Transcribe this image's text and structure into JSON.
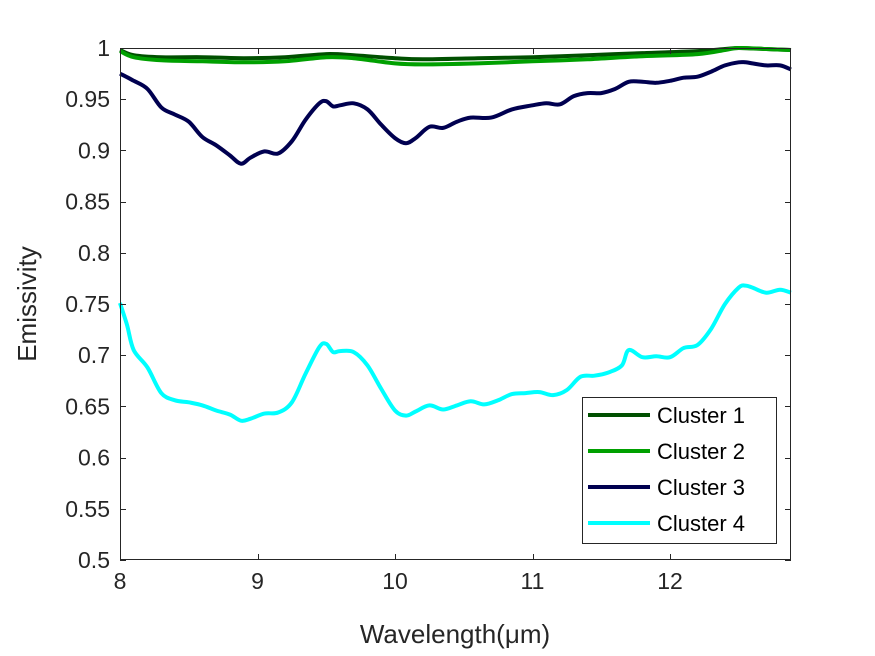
{
  "chart_data": {
    "type": "line",
    "title": "",
    "xlabel": "Wavelength(μm)",
    "ylabel": "Emissivity",
    "xlim": [
      8,
      12.88
    ],
    "ylim": [
      0.5,
      1.0
    ],
    "xticks": [
      8,
      9,
      10,
      11,
      12
    ],
    "xtick_labels": [
      "8",
      "9",
      "10",
      "11",
      "12"
    ],
    "yticks": [
      0.5,
      0.55,
      0.6,
      0.65,
      0.7,
      0.75,
      0.8,
      0.85,
      0.9,
      0.95,
      1.0
    ],
    "ytick_labels": [
      "0.5",
      "0.55",
      "0.6",
      "0.65",
      "0.7",
      "0.75",
      "0.8",
      "0.85",
      "0.9",
      "0.95",
      "1"
    ],
    "legend_position": "bottom-right",
    "grid": false,
    "series": [
      {
        "name": "Cluster 1",
        "color": "#005000",
        "x": [
          8.0,
          8.1,
          8.3,
          8.6,
          8.9,
          9.2,
          9.5,
          9.7,
          10.0,
          10.2,
          10.6,
          11.0,
          11.4,
          11.8,
          12.2,
          12.4,
          12.5,
          12.7,
          12.88
        ],
        "y": [
          0.998,
          0.993,
          0.991,
          0.991,
          0.99,
          0.991,
          0.994,
          0.993,
          0.99,
          0.989,
          0.99,
          0.991,
          0.993,
          0.995,
          0.997,
          0.999,
          1.0,
          0.999,
          0.998
        ]
      },
      {
        "name": "Cluster 2",
        "color": "#00A000",
        "x": [
          8.0,
          8.1,
          8.3,
          8.6,
          8.9,
          9.2,
          9.5,
          9.7,
          10.0,
          10.2,
          10.6,
          11.0,
          11.4,
          11.8,
          12.2,
          12.4,
          12.5,
          12.7,
          12.88
        ],
        "y": [
          0.997,
          0.991,
          0.988,
          0.987,
          0.986,
          0.987,
          0.991,
          0.99,
          0.985,
          0.984,
          0.985,
          0.987,
          0.989,
          0.992,
          0.994,
          0.998,
          1.0,
          0.999,
          0.998
        ]
      },
      {
        "name": "Cluster 3",
        "color": "#000050",
        "x": [
          8.0,
          8.1,
          8.2,
          8.3,
          8.4,
          8.5,
          8.6,
          8.7,
          8.8,
          8.88,
          8.95,
          9.05,
          9.15,
          9.25,
          9.35,
          9.45,
          9.5,
          9.55,
          9.6,
          9.7,
          9.8,
          9.9,
          10.0,
          10.08,
          10.15,
          10.25,
          10.35,
          10.45,
          10.55,
          10.7,
          10.85,
          11.0,
          11.1,
          11.2,
          11.3,
          11.4,
          11.5,
          11.6,
          11.7,
          11.8,
          11.9,
          12.0,
          12.1,
          12.2,
          12.3,
          12.4,
          12.5,
          12.55,
          12.6,
          12.7,
          12.8,
          12.88
        ],
        "y": [
          0.975,
          0.968,
          0.96,
          0.942,
          0.935,
          0.928,
          0.913,
          0.905,
          0.895,
          0.887,
          0.893,
          0.899,
          0.897,
          0.909,
          0.93,
          0.946,
          0.948,
          0.943,
          0.944,
          0.946,
          0.94,
          0.925,
          0.912,
          0.907,
          0.912,
          0.923,
          0.922,
          0.928,
          0.932,
          0.932,
          0.94,
          0.944,
          0.946,
          0.945,
          0.953,
          0.956,
          0.956,
          0.96,
          0.967,
          0.967,
          0.966,
          0.968,
          0.971,
          0.972,
          0.977,
          0.983,
          0.986,
          0.986,
          0.985,
          0.983,
          0.983,
          0.979
        ]
      },
      {
        "name": "Cluster 4",
        "color": "#00FFFF",
        "x": [
          8.0,
          8.05,
          8.1,
          8.2,
          8.3,
          8.4,
          8.5,
          8.6,
          8.7,
          8.8,
          8.88,
          8.95,
          9.05,
          9.15,
          9.25,
          9.35,
          9.45,
          9.5,
          9.55,
          9.6,
          9.7,
          9.8,
          9.9,
          10.0,
          10.08,
          10.15,
          10.25,
          10.35,
          10.45,
          10.55,
          10.65,
          10.75,
          10.85,
          10.95,
          11.05,
          11.15,
          11.25,
          11.35,
          11.45,
          11.55,
          11.65,
          11.7,
          11.8,
          11.9,
          12.0,
          12.1,
          12.2,
          12.3,
          12.4,
          12.5,
          12.55,
          12.6,
          12.7,
          12.8,
          12.88
        ],
        "y": [
          0.751,
          0.73,
          0.705,
          0.688,
          0.663,
          0.656,
          0.654,
          0.651,
          0.646,
          0.642,
          0.636,
          0.638,
          0.643,
          0.644,
          0.654,
          0.682,
          0.708,
          0.711,
          0.703,
          0.704,
          0.703,
          0.69,
          0.667,
          0.646,
          0.641,
          0.645,
          0.651,
          0.647,
          0.651,
          0.655,
          0.652,
          0.656,
          0.662,
          0.663,
          0.664,
          0.661,
          0.666,
          0.679,
          0.68,
          0.683,
          0.69,
          0.705,
          0.698,
          0.699,
          0.698,
          0.707,
          0.71,
          0.726,
          0.75,
          0.766,
          0.768,
          0.766,
          0.761,
          0.764,
          0.761
        ]
      }
    ]
  }
}
